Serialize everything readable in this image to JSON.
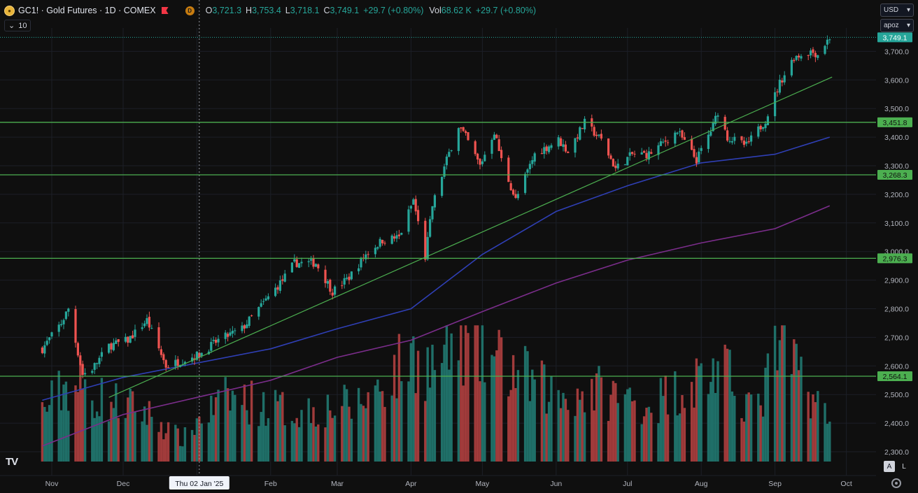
{
  "header": {
    "symbol": "GC1!",
    "title": "GC1! · Gold Futures · 1D · COMEX",
    "exchange_badge": "D",
    "open_label": "O",
    "open": "3,721.3",
    "high_label": "H",
    "high": "3,753.4",
    "low_label": "L",
    "low": "3,718.1",
    "close_label": "C",
    "close": "3,749.1",
    "change": "+29.7 (+0.80%)",
    "vol_label": "Vol",
    "volume": "68.62 K",
    "vol_change": "+29.7 (+0.80%)"
  },
  "indicator_toggle": {
    "label": "10"
  },
  "currency_select": {
    "value": "USD"
  },
  "scale_select": {
    "value": "apoz"
  },
  "footer": {
    "auto_label": "A",
    "log_label": "L"
  },
  "colors": {
    "up": "#26a69a",
    "down": "#ef5350",
    "level": "#4caf50",
    "trend": "#4caf50",
    "ma_fast": "#2f3fb5",
    "ma_slow": "#7b2d8b",
    "background": "#0f0f0f"
  },
  "chart_data": {
    "type": "candlestick",
    "symbol": "GC1!",
    "timeframe": "1D",
    "x_ticks": [
      "Nov",
      "Dec",
      "Thu 02 Jan '25",
      "Feb",
      "Mar",
      "Apr",
      "May",
      "Jun",
      "Jul",
      "Aug",
      "Sep",
      "Oct"
    ],
    "crosshair_date": "Thu 02 Jan '25",
    "y_ticks": [
      "2,300.0",
      "2,400.0",
      "2,500.0",
      "2,600.0",
      "2,700.0",
      "2,800.0",
      "2,900.0",
      "3,000.0",
      "3,100.0",
      "3,200.0",
      "3,300.0",
      "3,400.0",
      "3,500.0",
      "3,600.0",
      "3,700.0"
    ],
    "ylim": [
      2260,
      3800
    ],
    "last_price": "3,749.1",
    "horizontal_levels": [
      "3,451.8",
      "3,268.3",
      "2,976.3",
      "2,564.1"
    ],
    "trendline": {
      "from": [
        "2024-11-25",
        2490
      ],
      "to": [
        "2025-09-25",
        3610
      ]
    },
    "close_path": [
      [
        "2024-10-28",
        2660
      ],
      [
        "2024-11-05",
        2750
      ],
      [
        "2024-11-08",
        2800
      ],
      [
        "2024-11-14",
        2570
      ],
      [
        "2024-11-18",
        2590
      ],
      [
        "2024-11-25",
        2670
      ],
      [
        "2024-12-03",
        2690
      ],
      [
        "2024-12-11",
        2760
      ],
      [
        "2024-12-19",
        2600
      ],
      [
        "2025-01-02",
        2640
      ],
      [
        "2025-01-10",
        2690
      ],
      [
        "2025-01-20",
        2730
      ],
      [
        "2025-01-29",
        2820
      ],
      [
        "2025-02-06",
        2900
      ],
      [
        "2025-02-11",
        2960
      ],
      [
        "2025-02-20",
        2960
      ],
      [
        "2025-02-27",
        2860
      ],
      [
        "2025-03-06",
        2910
      ],
      [
        "2025-03-13",
        2990
      ],
      [
        "2025-03-20",
        3040
      ],
      [
        "2025-03-27",
        3050
      ],
      [
        "2025-04-02",
        3180
      ],
      [
        "2025-04-07",
        2980
      ],
      [
        "2025-04-10",
        3160
      ],
      [
        "2025-04-16",
        3320
      ],
      [
        "2025-04-21",
        3440
      ],
      [
        "2025-04-24",
        3400
      ],
      [
        "2025-04-30",
        3300
      ],
      [
        "2025-05-06",
        3420
      ],
      [
        "2025-05-09",
        3320
      ],
      [
        "2025-05-15",
        3180
      ],
      [
        "2025-05-23",
        3340
      ],
      [
        "2025-06-02",
        3390
      ],
      [
        "2025-06-06",
        3350
      ],
      [
        "2025-06-13",
        3450
      ],
      [
        "2025-06-20",
        3390
      ],
      [
        "2025-06-26",
        3290
      ],
      [
        "2025-07-03",
        3340
      ],
      [
        "2025-07-10",
        3340
      ],
      [
        "2025-07-22",
        3420
      ],
      [
        "2025-07-30",
        3320
      ],
      [
        "2025-08-06",
        3440
      ],
      [
        "2025-08-08",
        3490
      ],
      [
        "2025-08-12",
        3400
      ],
      [
        "2025-08-20",
        3370
      ],
      [
        "2025-08-28",
        3460
      ],
      [
        "2025-09-03",
        3590
      ],
      [
        "2025-09-09",
        3680
      ],
      [
        "2025-09-16",
        3700
      ],
      [
        "2025-09-19",
        3690
      ],
      [
        "2025-09-24",
        3749
      ]
    ],
    "moving_averages": [
      {
        "color": "#2f3fb5",
        "points": [
          [
            "2024-10-28",
            2480
          ],
          [
            "2024-12-01",
            2560
          ],
          [
            "2025-01-01",
            2610
          ],
          [
            "2025-02-01",
            2660
          ],
          [
            "2025-03-01",
            2730
          ],
          [
            "2025-04-01",
            2800
          ],
          [
            "2025-05-01",
            2990
          ],
          [
            "2025-06-01",
            3140
          ],
          [
            "2025-07-01",
            3230
          ],
          [
            "2025-08-01",
            3310
          ],
          [
            "2025-09-01",
            3340
          ],
          [
            "2025-09-24",
            3400
          ]
        ]
      },
      {
        "color": "#7b2d8b",
        "points": [
          [
            "2024-10-28",
            2320
          ],
          [
            "2024-12-01",
            2430
          ],
          [
            "2025-01-01",
            2490
          ],
          [
            "2025-02-01",
            2550
          ],
          [
            "2025-03-01",
            2630
          ],
          [
            "2025-04-01",
            2690
          ],
          [
            "2025-05-01",
            2790
          ],
          [
            "2025-06-01",
            2890
          ],
          [
            "2025-07-01",
            2970
          ],
          [
            "2025-08-01",
            3030
          ],
          [
            "2025-09-01",
            3080
          ],
          [
            "2025-09-24",
            3160
          ]
        ]
      }
    ],
    "volume_levels": [
      [
        "2024-10-28",
        0.35
      ],
      [
        "2024-11-08",
        0.55
      ],
      [
        "2024-11-20",
        0.45
      ],
      [
        "2024-12-10",
        0.35
      ],
      [
        "2024-12-26",
        0.15
      ],
      [
        "2025-01-02",
        0.3
      ],
      [
        "2025-01-15",
        0.45
      ],
      [
        "2025-02-10",
        0.35
      ],
      [
        "2025-03-10",
        0.4
      ],
      [
        "2025-04-03",
        0.75
      ],
      [
        "2025-04-09",
        0.65
      ],
      [
        "2025-04-22",
        0.85
      ],
      [
        "2025-05-07",
        0.7
      ],
      [
        "2025-06-02",
        0.45
      ],
      [
        "2025-06-16",
        0.5
      ],
      [
        "2025-07-10",
        0.4
      ],
      [
        "2025-08-08",
        0.65
      ],
      [
        "2025-08-25",
        0.35
      ],
      [
        "2025-09-03",
        0.85
      ],
      [
        "2025-09-16",
        0.5
      ],
      [
        "2025-09-24",
        0.25
      ]
    ]
  }
}
